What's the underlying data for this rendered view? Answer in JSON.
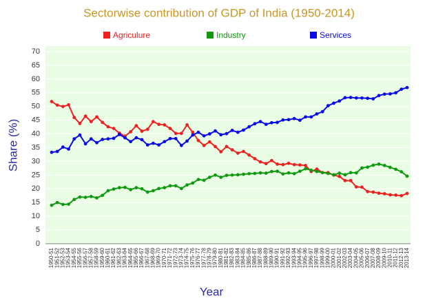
{
  "chart_data": {
    "type": "line",
    "title": "Sectorwise contribution of GDP of India (1950-2014)",
    "xlabel": "Year",
    "ylabel": "Share (%)",
    "categories": [
      "1950-51",
      "1951-52",
      "1952-53",
      "1953-54",
      "1954-55",
      "1955-56",
      "1956-57",
      "1957-58",
      "1958-59",
      "1959-60",
      "1960-61",
      "1961-62",
      "1962-63",
      "1963-64",
      "1964-65",
      "1965-66",
      "1966-67",
      "1967-68",
      "1968-69",
      "1969-70",
      "1970-71",
      "1971-72",
      "1972-73",
      "1973-74",
      "1974-75",
      "1975-76",
      "1976-77",
      "1977-78",
      "1978-79",
      "1979-80",
      "1980-81",
      "1981-82",
      "1982-83",
      "1983-84",
      "1984-85",
      "1985-86",
      "1986-87",
      "1987-88",
      "1988-89",
      "1989-90",
      "1990-91",
      "1991-92",
      "1992-93",
      "1993-94",
      "1994-95",
      "1995-96",
      "1996-97",
      "1997-98",
      "1998-99",
      "1999-00",
      "2000-01",
      "2001-02",
      "2002-03",
      "2003-04",
      "2004-05",
      "2005-06",
      "2006-07",
      "2007-08",
      "2008-09",
      "2009-10",
      "2010-11",
      "2011-12",
      "2012-13",
      "2013-14"
    ],
    "series": [
      {
        "name": "Agriculure",
        "color": "#ee2020",
        "values": [
          51.8,
          50.5,
          50,
          50.6,
          46,
          43.8,
          46.5,
          44.5,
          46.2,
          44.2,
          42.6,
          42,
          40.3,
          39.2,
          40.8,
          43,
          41,
          41.7,
          44.5,
          43.5,
          43.3,
          42,
          40.2,
          40.2,
          43.3,
          40.6,
          37.6,
          35.8,
          37.1,
          35.4,
          33.5,
          35.4,
          34.2,
          33,
          33.6,
          32.3,
          31,
          29.8,
          29.2,
          30.3,
          29,
          28.8,
          29.3,
          28.8,
          28.7,
          28.5,
          26.3,
          27.2,
          25.9,
          25.9,
          25,
          24.5,
          23,
          23,
          20.7,
          20.6,
          19,
          18.8,
          18.4,
          18.2,
          17.8,
          17.7,
          17.5,
          18.3
        ]
      },
      {
        "name": "Industry",
        "color": "#109a10",
        "values": [
          14,
          15,
          14.3,
          14.4,
          16.1,
          17,
          16.9,
          17.2,
          16.7,
          17.6,
          19.3,
          19.9,
          20.4,
          20.5,
          19.7,
          20.4,
          20,
          18.8,
          19.3,
          20.1,
          20.4,
          21.1,
          21.1,
          20.1,
          21.4,
          22.1,
          23.4,
          23.1,
          24.2,
          25,
          24.2,
          24.9,
          25,
          25.1,
          25.3,
          25.5,
          25.6,
          25.8,
          25.7,
          26.3,
          26.4,
          25.4,
          25.8,
          25.5,
          26.4,
          27.3,
          26.8,
          26.3,
          25.9,
          25.6,
          25.1,
          25.7,
          25.1,
          25.9,
          25.8,
          27.6,
          27.9,
          28.6,
          29,
          28.5,
          27.8,
          27.1,
          26.2,
          24.6
        ]
      },
      {
        "name": "Services",
        "color": "#0a0ae6",
        "values": [
          33.3,
          33.6,
          35.2,
          34.5,
          38.2,
          39.6,
          36.4,
          38.2,
          36.8,
          38,
          38.2,
          38.4,
          39.8,
          38.6,
          37.2,
          38.6,
          37.9,
          36,
          36.6,
          36,
          37.2,
          38.3,
          38.3,
          35.8,
          37.4,
          39.6,
          40.6,
          39.3,
          40,
          41.1,
          39.7,
          40.1,
          41.3,
          40.6,
          41.4,
          42.6,
          43.7,
          44.5,
          43.5,
          44.1,
          44.2,
          45.1,
          45.2,
          45.6,
          45,
          46.2,
          46.2,
          47.3,
          48.1,
          50.3,
          51.2,
          52,
          53.2,
          53.3,
          53.1,
          53.1,
          53,
          52.8,
          54,
          54.5,
          54.6,
          55,
          56.3,
          56.9
        ]
      }
    ],
    "ylim": [
      0,
      70
    ],
    "yticks": [
      0,
      5,
      10,
      15,
      20,
      25,
      30,
      35,
      40,
      45,
      50,
      55,
      60,
      65,
      70
    ],
    "grid": true
  }
}
